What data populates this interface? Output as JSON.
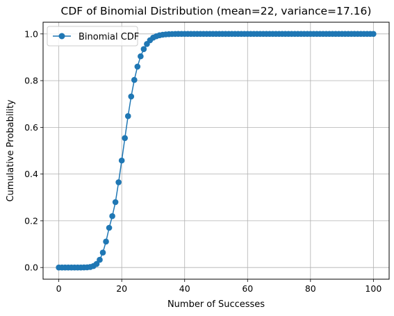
{
  "chart_data": {
    "type": "line",
    "title": "CDF of Binomial Distribution (mean=22, variance=17.16)",
    "xlabel": "Number of Successes",
    "ylabel": "Cumulative Probability",
    "xlim": [
      -5,
      105
    ],
    "ylim": [
      -0.05,
      1.05
    ],
    "xticks": [
      0,
      20,
      40,
      60,
      80,
      100
    ],
    "yticks": [
      0.0,
      0.2,
      0.4,
      0.6,
      0.8,
      1.0
    ],
    "xtick_labels": [
      "0",
      "20",
      "40",
      "60",
      "80",
      "100"
    ],
    "ytick_labels": [
      "0.0",
      "0.2",
      "0.4",
      "0.6",
      "0.8",
      "1.0"
    ],
    "grid": true,
    "legend_position": "top-left",
    "colors": {
      "series": "#1f77b4",
      "grid": "#b0b0b0"
    },
    "series": [
      {
        "name": "Binomial CDF",
        "marker": "circle",
        "x": [
          0,
          1,
          2,
          3,
          4,
          5,
          6,
          7,
          8,
          9,
          10,
          11,
          12,
          13,
          14,
          15,
          16,
          17,
          18,
          19,
          20,
          21,
          22,
          23,
          24,
          25,
          26,
          27,
          28,
          29,
          30,
          31,
          32,
          33,
          34,
          35,
          36,
          37,
          38,
          39,
          40,
          41,
          42,
          43,
          44,
          45,
          46,
          47,
          48,
          49,
          50,
          51,
          52,
          53,
          54,
          55,
          56,
          57,
          58,
          59,
          60,
          61,
          62,
          63,
          64,
          65,
          66,
          67,
          68,
          69,
          70,
          71,
          72,
          73,
          74,
          75,
          76,
          77,
          78,
          79,
          80,
          81,
          82,
          83,
          84,
          85,
          86,
          87,
          88,
          89,
          90,
          91,
          92,
          93,
          94,
          95,
          96,
          97,
          98,
          99,
          100
        ],
        "y": [
          0.0,
          0.0,
          0.0,
          0.0,
          0.0,
          0.0,
          0.0,
          0.0,
          0.0002,
          0.0007,
          0.0023,
          0.0063,
          0.0152,
          0.033,
          0.064,
          0.111,
          0.17,
          0.22,
          0.28,
          0.365,
          0.458,
          0.554,
          0.648,
          0.732,
          0.803,
          0.86,
          0.904,
          0.935,
          0.957,
          0.973,
          0.984,
          0.99,
          0.994,
          0.9965,
          0.998,
          0.999,
          0.9995,
          0.9998,
          0.9999,
          1.0,
          1.0,
          1.0,
          1.0,
          1.0,
          1.0,
          1.0,
          1.0,
          1.0,
          1.0,
          1.0,
          1.0,
          1.0,
          1.0,
          1.0,
          1.0,
          1.0,
          1.0,
          1.0,
          1.0,
          1.0,
          1.0,
          1.0,
          1.0,
          1.0,
          1.0,
          1.0,
          1.0,
          1.0,
          1.0,
          1.0,
          1.0,
          1.0,
          1.0,
          1.0,
          1.0,
          1.0,
          1.0,
          1.0,
          1.0,
          1.0,
          1.0,
          1.0,
          1.0,
          1.0,
          1.0,
          1.0,
          1.0,
          1.0,
          1.0,
          1.0,
          1.0,
          1.0,
          1.0,
          1.0,
          1.0,
          1.0,
          1.0,
          1.0,
          1.0,
          1.0,
          1.0
        ]
      }
    ]
  }
}
